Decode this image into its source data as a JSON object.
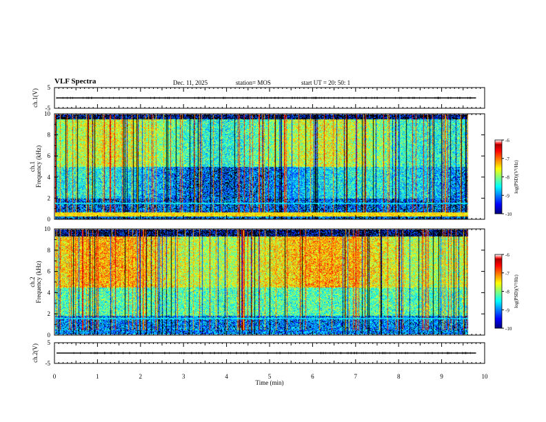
{
  "header": {
    "title": "VLF Spectra",
    "date": "Dec. 11, 2025",
    "station": "station= MOS",
    "start_ut": "start  UT =   20: 50: 1"
  },
  "colors": {
    "axis": "#000000",
    "background_spectrogram": "#000000"
  },
  "chart_data": [
    {
      "id": "ch1-voltage",
      "type": "line",
      "ylabel": "ch.1(V)",
      "ylim": [
        -5,
        5
      ],
      "yticks": [
        5,
        -5
      ],
      "xlim": [
        0,
        10
      ],
      "level": 0
    },
    {
      "id": "ch1-spectrogram",
      "type": "heatmap",
      "ylabel": "ch.1\nFrequency (kHz)",
      "ylim": [
        0,
        10
      ],
      "yticks": [
        0,
        2,
        4,
        6,
        8,
        10
      ],
      "xlim": [
        0,
        10
      ],
      "data_end_min": 9.8,
      "colorbar": {
        "label": "log(PSD)(V²/Hz)",
        "range": [
          -10,
          -6
        ],
        "ticks": [
          -6,
          -7,
          -8,
          -9,
          -10
        ]
      }
    },
    {
      "id": "ch2-spectrogram",
      "type": "heatmap",
      "ylabel": "ch.2\nFrequency (kHz)",
      "ylim": [
        0,
        10
      ],
      "yticks": [
        0,
        2,
        4,
        6,
        8,
        10
      ],
      "xlim": [
        0,
        10
      ],
      "data_end_min": 9.8,
      "colorbar": {
        "label": "log(PSD)(V²/Hz)",
        "range": [
          -10,
          -6
        ],
        "ticks": [
          -6,
          -7,
          -8,
          -9,
          -10
        ]
      }
    },
    {
      "id": "ch2-voltage",
      "type": "line",
      "ylabel": "ch.2(V)",
      "ylim": [
        -5,
        5
      ],
      "yticks": [
        5,
        -5
      ],
      "xlim": [
        0,
        10
      ],
      "level": 0
    }
  ],
  "xaxis": {
    "label": "Time (min)",
    "ticks": [
      "0",
      "1",
      "2",
      "3",
      "4",
      "5",
      "6",
      "7",
      "8",
      "9",
      "10"
    ]
  }
}
